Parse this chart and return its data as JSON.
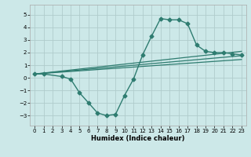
{
  "xlabel": "Humidex (Indice chaleur)",
  "ylabel": "",
  "bg_color": "#cce8e8",
  "grid_color": "#b0cccc",
  "line_color": "#2e7c70",
  "xlim": [
    -0.5,
    23.5
  ],
  "ylim": [
    -3.8,
    5.8
  ],
  "xticks": [
    0,
    1,
    2,
    3,
    4,
    5,
    6,
    7,
    8,
    9,
    10,
    11,
    12,
    13,
    14,
    15,
    16,
    17,
    18,
    19,
    20,
    21,
    22,
    23
  ],
  "yticks": [
    -3,
    -2,
    -1,
    0,
    1,
    2,
    3,
    4,
    5
  ],
  "series": [
    {
      "x": [
        0,
        1,
        3,
        4,
        5,
        6,
        7,
        8,
        9,
        10,
        11,
        12,
        13,
        14,
        15,
        16,
        17,
        18,
        19,
        20,
        21,
        22,
        23
      ],
      "y": [
        0.3,
        0.3,
        0.1,
        -0.1,
        -1.2,
        -2.0,
        -2.8,
        -3.0,
        -2.9,
        -1.4,
        -0.1,
        1.8,
        3.3,
        4.7,
        4.6,
        4.6,
        4.3,
        2.6,
        2.1,
        2.0,
        2.0,
        1.9,
        1.8
      ],
      "marker": "D",
      "markersize": 2.5,
      "linewidth": 1.0,
      "zorder": 3
    },
    {
      "x": [
        0,
        23
      ],
      "y": [
        0.3,
        2.1
      ],
      "marker": null,
      "linewidth": 0.9,
      "zorder": 2
    },
    {
      "x": [
        0,
        23
      ],
      "y": [
        0.3,
        1.75
      ],
      "marker": null,
      "linewidth": 0.9,
      "zorder": 2
    },
    {
      "x": [
        0,
        23
      ],
      "y": [
        0.3,
        1.45
      ],
      "marker": null,
      "linewidth": 0.9,
      "zorder": 2
    }
  ]
}
